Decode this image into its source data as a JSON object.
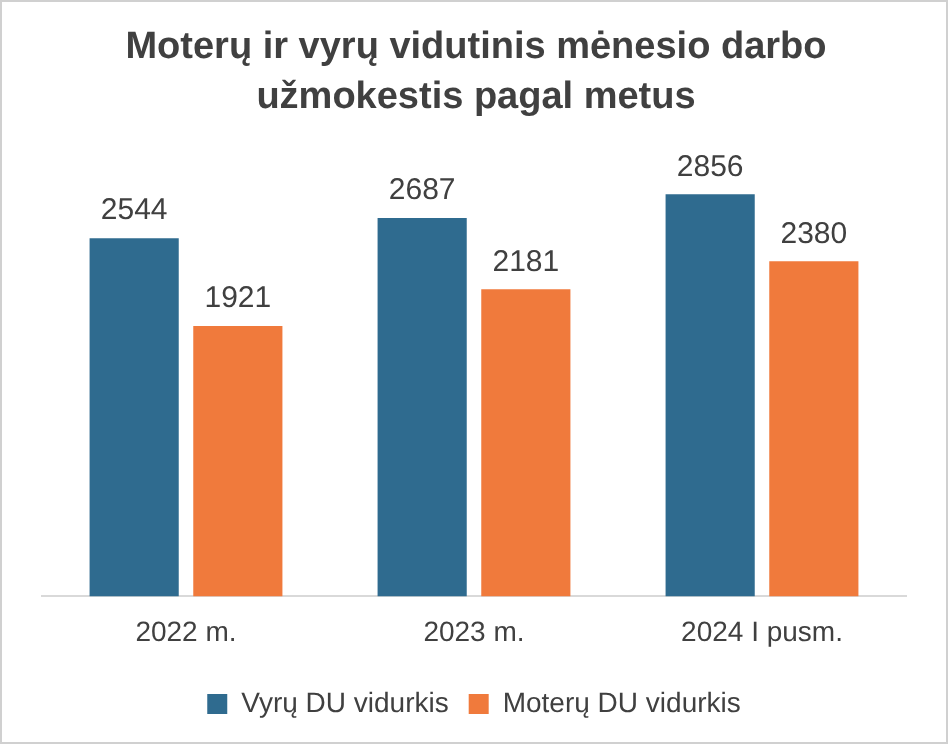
{
  "chart_data": {
    "type": "bar",
    "title": "Moterų ir vyrų vidutinis mėnesio darbo užmokestis pagal metus",
    "categories": [
      "2022 m.",
      "2023 m.",
      "2024 I pusm."
    ],
    "series": [
      {
        "name": "Vyrų DU vidurkis",
        "color": "#2f6b8f",
        "values": [
          2544,
          2687,
          2856
        ]
      },
      {
        "name": "Moterų DU vidurkis",
        "color": "#f07a3c",
        "values": [
          1921,
          2181,
          2380
        ]
      }
    ],
    "data_labels": true,
    "grid": false,
    "legend": "bottom"
  }
}
